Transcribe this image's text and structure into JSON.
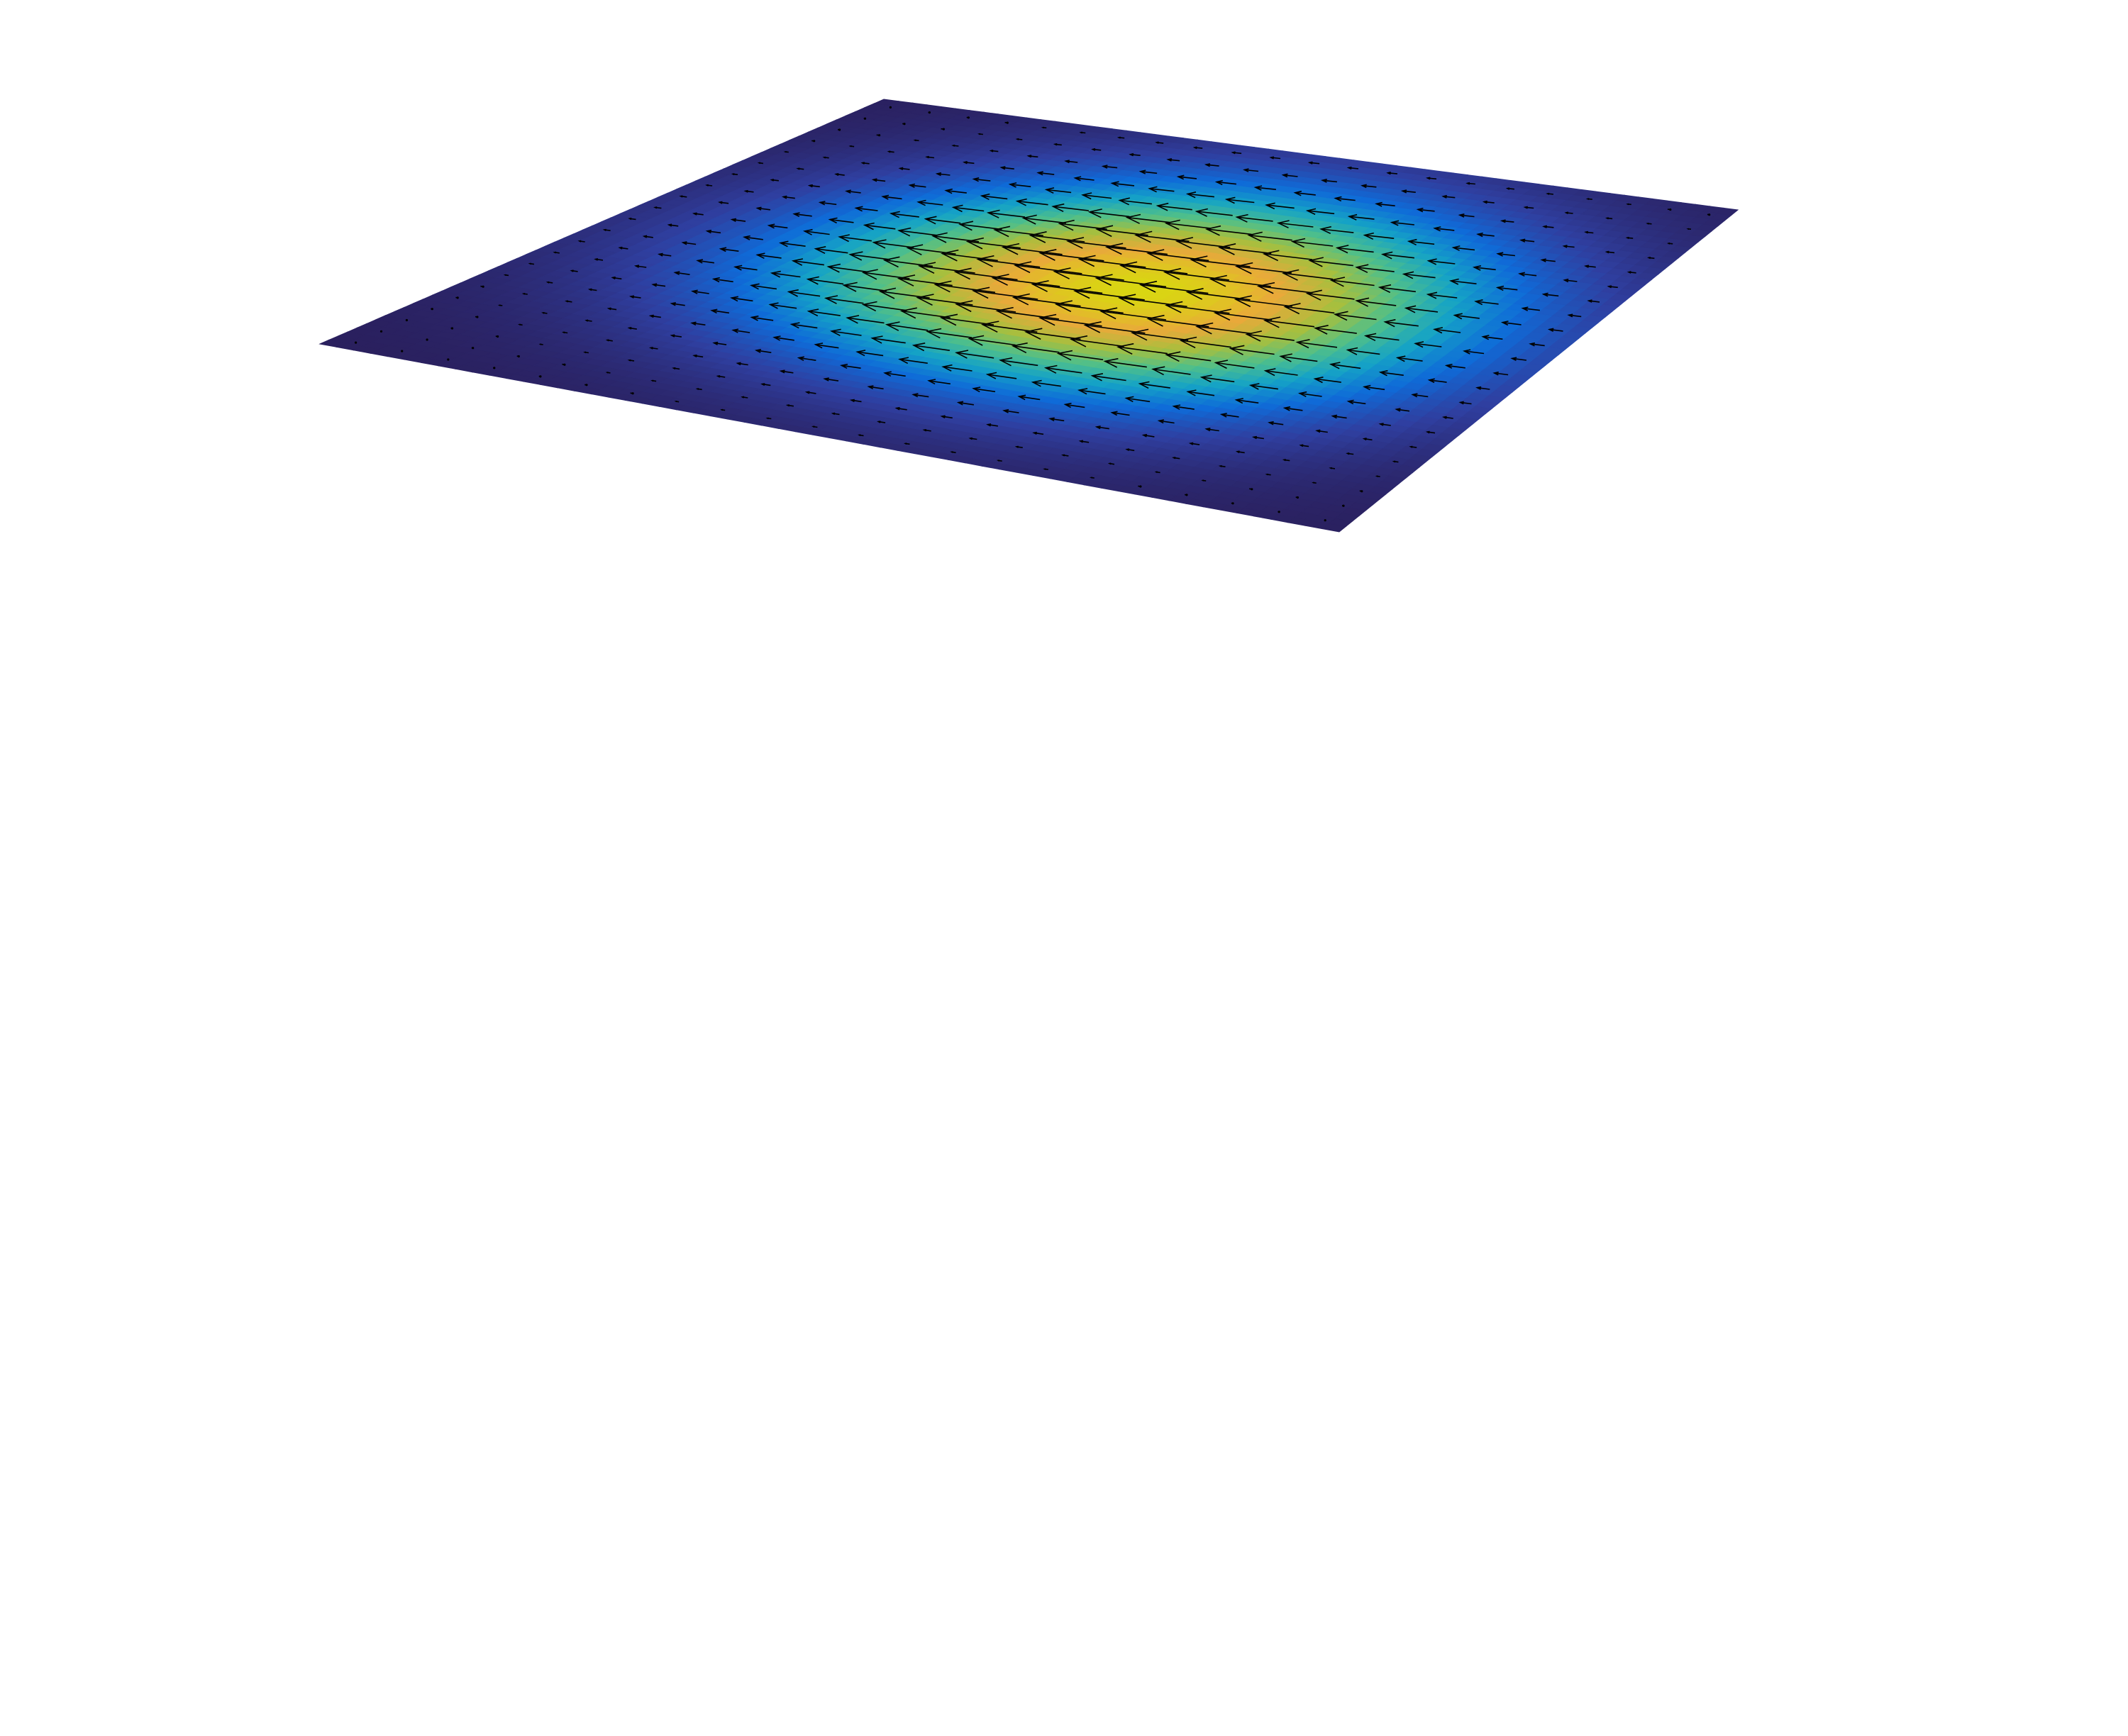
{
  "chart_data": {
    "type": "heatmap",
    "variant": "3d-surface-with-quiver",
    "surface": {
      "field": "gaussian",
      "peak_value": 1.0,
      "edge_value": 0.0,
      "center": [
        0.55,
        0.55
      ],
      "sigma": [
        0.22,
        0.24
      ],
      "grid": [
        60,
        60
      ]
    },
    "quiver": {
      "grid": [
        22,
        22
      ],
      "direction": [
        -1.0,
        -0.08
      ],
      "magnitude_field": "gaussian",
      "arrow_color": "#000000"
    },
    "colormap": {
      "name": "parula",
      "stops": [
        "#2a1f5c",
        "#2f3fa0",
        "#0f6bd8",
        "#15a3c6",
        "#4fbf8a",
        "#a7bf3e",
        "#e9a93a",
        "#d9d612"
      ]
    },
    "axes_visible": false,
    "grid": false,
    "legend": "none"
  }
}
